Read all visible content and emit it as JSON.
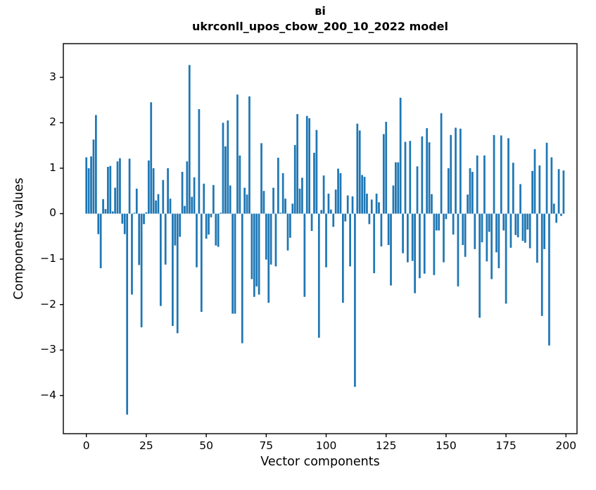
{
  "figure": {
    "title_line1": "ві",
    "title_line2": "ukrconll_upos_cbow_200_10_2022 model"
  },
  "chart_data": {
    "type": "bar",
    "title": "ві\nukrconll_upos_cbow_200_10_2022 model",
    "xlabel": "Vector components",
    "ylabel": "Components values",
    "bar_color": "#1f77b4",
    "grid": false,
    "legend": null,
    "xlim": [
      -9.6,
      204.6
    ],
    "ylim": [
      -4.84,
      3.74
    ],
    "xticks": [
      0,
      25,
      50,
      75,
      100,
      125,
      150,
      175,
      200
    ],
    "xtick_labels": [
      "0",
      "25",
      "50",
      "75",
      "100",
      "125",
      "150",
      "175",
      "200"
    ],
    "yticks": [
      3,
      2,
      1,
      0,
      -1,
      -2,
      -3,
      -4
    ],
    "ytick_labels": [
      "3",
      "2",
      "1",
      "0",
      "−1",
      "−2",
      "−3",
      "−4"
    ],
    "x_is_index": true,
    "bar_width": 0.8,
    "values": [
      1.24,
      1.0,
      1.26,
      1.63,
      2.17,
      -0.45,
      -1.2,
      0.32,
      0.1,
      1.03,
      1.05,
      0.05,
      0.57,
      1.15,
      1.22,
      -0.22,
      -0.45,
      -4.42,
      1.21,
      -1.78,
      0.02,
      0.55,
      -1.13,
      -2.5,
      -0.23,
      0.03,
      1.17,
      2.45,
      1.0,
      0.29,
      0.43,
      -2.03,
      0.74,
      -1.12,
      1.0,
      0.33,
      -2.47,
      -0.7,
      -2.63,
      -0.51,
      0.92,
      0.17,
      1.15,
      3.27,
      0.37,
      0.8,
      -1.18,
      2.3,
      -2.16,
      0.66,
      -0.55,
      -0.46,
      -0.08,
      0.63,
      -0.7,
      -0.73,
      0.02,
      2.0,
      1.48,
      2.05,
      0.62,
      -2.2,
      -2.2,
      2.62,
      1.28,
      -2.85,
      0.57,
      0.42,
      2.58,
      -1.44,
      -1.83,
      -1.6,
      -1.78,
      1.55,
      0.5,
      -1.01,
      -1.96,
      -1.12,
      0.57,
      -1.16,
      1.23,
      0.02,
      0.89,
      0.33,
      -0.81,
      -0.53,
      0.22,
      1.51,
      2.19,
      0.55,
      0.79,
      -1.83,
      2.15,
      2.1,
      -0.38,
      1.34,
      1.84,
      -2.73,
      0.08,
      0.84,
      -1.18,
      0.44,
      0.09,
      -0.29,
      0.53,
      0.99,
      0.89,
      -1.96,
      -0.17,
      0.4,
      -1.16,
      0.38,
      -3.81,
      1.98,
      1.83,
      0.85,
      0.81,
      0.44,
      -0.23,
      0.31,
      -1.31,
      0.44,
      0.25,
      -0.72,
      1.75,
      2.02,
      -0.69,
      -1.58,
      0.62,
      1.13,
      1.13,
      2.55,
      -0.87,
      1.58,
      -1.07,
      1.6,
      -1.04,
      -1.75,
      1.04,
      -1.42,
      1.7,
      -1.32,
      1.88,
      1.57,
      0.43,
      -1.35,
      -0.37,
      -0.37,
      2.21,
      -1.07,
      -0.12,
      1.0,
      1.73,
      -0.46,
      1.89,
      -1.6,
      1.87,
      -0.69,
      -0.95,
      0.42,
      1.0,
      0.92,
      -0.78,
      1.28,
      -2.29,
      -0.63,
      1.28,
      -1.05,
      -0.4,
      -1.44,
      1.73,
      -0.85,
      -1.2,
      1.72,
      -0.37,
      -1.98,
      1.66,
      -0.75,
      1.12,
      -0.47,
      -0.52,
      0.65,
      -0.6,
      -0.64,
      -0.35,
      -0.76,
      0.94,
      1.42,
      -1.08,
      1.06,
      -2.25,
      -0.78,
      1.56,
      -2.9,
      1.24,
      0.22,
      -0.2,
      0.98,
      -0.05,
      0.95
    ]
  }
}
